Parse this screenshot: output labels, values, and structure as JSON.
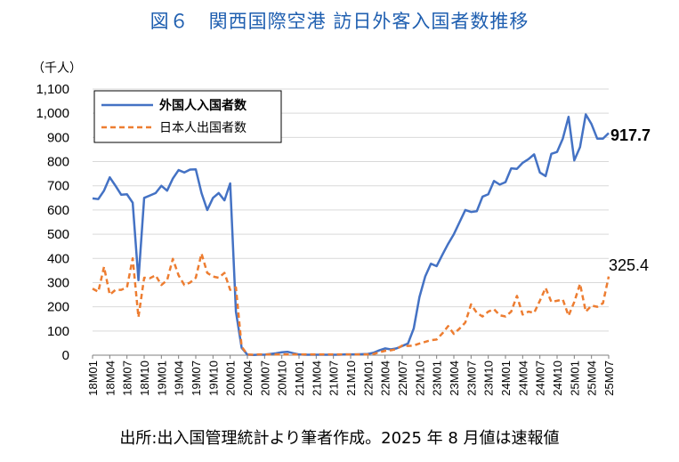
{
  "title": "図６　関西国際空港 訪日外客入国者数推移",
  "source": "出所:出入国管理統計より筆者作成。2025 年 8 月値は速報値",
  "chart_data": {
    "type": "line",
    "title": "図６　関西国際空港 訪日外客入国者数推移",
    "unit_label": "（千人）",
    "ylim": [
      0,
      1100
    ],
    "yticks": [
      "0",
      "100",
      "200",
      "300",
      "400",
      "500",
      "600",
      "700",
      "800",
      "900",
      "1,000",
      "1,100"
    ],
    "ytick_values": [
      0,
      100,
      200,
      300,
      400,
      500,
      600,
      700,
      800,
      900,
      1000,
      1100
    ],
    "grid": "horizontal",
    "legend_position": "top-left",
    "x_start": "2018-01",
    "x_tick_labels": [
      "18M01",
      "18M04",
      "18M07",
      "18M10",
      "19M01",
      "19M04",
      "19M07",
      "19M10",
      "20M01",
      "20M04",
      "20M07",
      "20M10",
      "21M01",
      "21M04",
      "21M07",
      "21M10",
      "22M01",
      "22M04",
      "22M07",
      "22M10",
      "23M01",
      "23M04",
      "23M07",
      "23M10",
      "24M01",
      "24M04",
      "24M07",
      "24M10",
      "25M01",
      "25M04",
      "25M07"
    ],
    "series": [
      {
        "name": "外国人入国者数",
        "color": "#4472c4",
        "dash": "solid",
        "end_label": "917.7",
        "values": [
          648,
          645,
          680,
          735,
          700,
          663,
          665,
          630,
          310,
          650,
          660,
          670,
          700,
          680,
          730,
          765,
          755,
          767,
          768,
          670,
          600,
          650,
          670,
          640,
          710,
          180,
          30,
          2,
          1,
          2,
          2,
          5,
          8,
          12,
          14,
          8,
          3,
          2,
          2,
          2,
          2,
          2,
          2,
          2,
          3,
          3,
          3,
          4,
          5,
          10,
          20,
          28,
          24,
          28,
          38,
          48,
          110,
          240,
          325,
          378,
          368,
          415,
          460,
          500,
          550,
          600,
          592,
          595,
          655,
          665,
          720,
          705,
          715,
          772,
          770,
          795,
          810,
          830,
          755,
          740,
          832,
          840,
          895,
          985,
          805,
          860,
          995,
          955,
          895,
          895,
          918
        ]
      },
      {
        "name": "日本人出国者数",
        "color": "#ed7d31",
        "dash": "dashed",
        "end_label": "325.4",
        "values": [
          275,
          262,
          365,
          250,
          270,
          270,
          280,
          400,
          157,
          320,
          318,
          330,
          290,
          310,
          398,
          330,
          290,
          300,
          320,
          420,
          340,
          325,
          320,
          340,
          270,
          280,
          35,
          3,
          2,
          3,
          3,
          3,
          3,
          3,
          3,
          3,
          3,
          3,
          3,
          3,
          3,
          3,
          3,
          3,
          3,
          3,
          3,
          3,
          3,
          5,
          12,
          18,
          20,
          25,
          40,
          38,
          40,
          48,
          55,
          62,
          65,
          90,
          120,
          88,
          110,
          135,
          210,
          175,
          160,
          180,
          190,
          165,
          160,
          180,
          245,
          168,
          180,
          175,
          225,
          278,
          220,
          225,
          230,
          163,
          220,
          295,
          180,
          205,
          200,
          215,
          325
        ]
      }
    ]
  }
}
